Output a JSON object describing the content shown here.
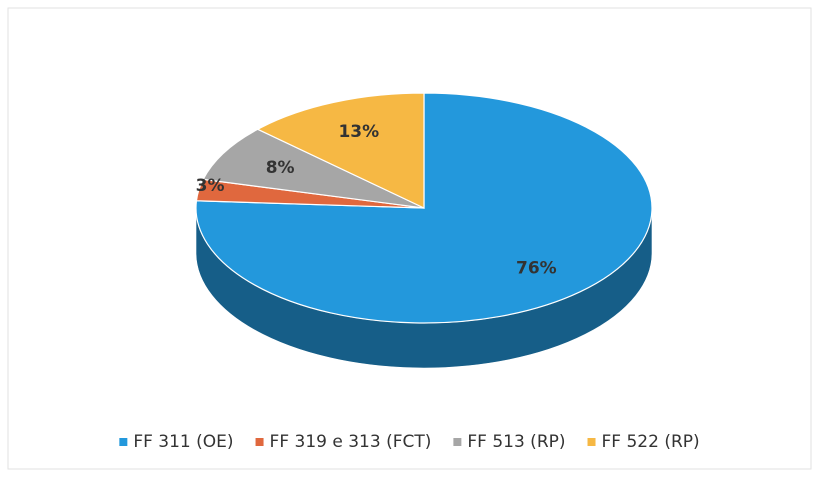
{
  "chart_data": {
    "type": "pie",
    "categories": [
      "FF 311 (OE)",
      "FF 319 e 313 (FCT)",
      "FF 513 (RP)",
      "FF 522 (RP)"
    ],
    "values": [
      76,
      3,
      8,
      13
    ],
    "value_labels": [
      "76%",
      "3%",
      "8%",
      "13%"
    ],
    "colors": [
      "#2398dc",
      "#e0683e",
      "#a6a6a6",
      "#f6b844"
    ],
    "legend": "bottom"
  }
}
